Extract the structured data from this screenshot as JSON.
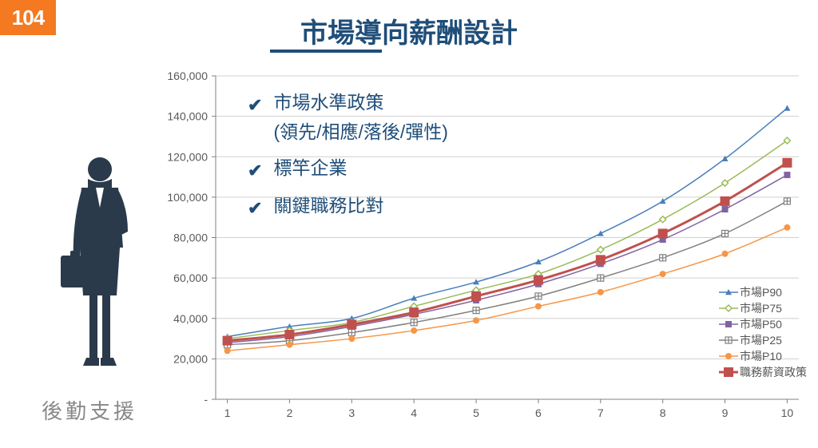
{
  "logo": {
    "text": "104",
    "bg": "#f47920",
    "fg": "#ffffff"
  },
  "title": "市場導向薪酬設計",
  "title_color": "#1f4e79",
  "bullets": [
    {
      "text": "市場水準政策",
      "sub": "(領先/相應/落後/彈性)"
    },
    {
      "text": "標竿企業"
    },
    {
      "text": "關鍵職務比對"
    }
  ],
  "person_label": "後勤支援",
  "person_color": "#2b3a4a",
  "chart": {
    "type": "line",
    "x_categories": [
      1,
      2,
      3,
      4,
      5,
      6,
      7,
      8,
      9,
      10
    ],
    "ylim": [
      0,
      160000
    ],
    "ytick_step": 20000,
    "y_labels": [
      "-",
      "20,000",
      "40,000",
      "60,000",
      "80,000",
      "100,000",
      "120,000",
      "140,000",
      "160,000"
    ],
    "grid_color": "#d0d0d0",
    "axis_color": "#808080",
    "label_color": "#595959",
    "label_fontsize": 14,
    "background": "#ffffff",
    "series": [
      {
        "name": "市場P90",
        "color": "#4a7ebb",
        "marker": "triangle",
        "line_width": 1.5,
        "values": [
          31000,
          36000,
          40000,
          50000,
          58000,
          68000,
          82000,
          98000,
          119000,
          144000
        ]
      },
      {
        "name": "市場P75",
        "color": "#9bbb59",
        "marker": "diamond-open",
        "line_width": 1.5,
        "values": [
          30000,
          34000,
          38000,
          46000,
          54000,
          62000,
          74000,
          89000,
          107000,
          128000
        ]
      },
      {
        "name": "市場P50",
        "color": "#8064a2",
        "marker": "square",
        "line_width": 1.5,
        "values": [
          28000,
          31000,
          36000,
          42000,
          49000,
          57000,
          67000,
          79000,
          94000,
          111000
        ]
      },
      {
        "name": "市場P25",
        "color": "#808080",
        "marker": "plus-box",
        "line_width": 1.5,
        "values": [
          27000,
          29000,
          33000,
          38000,
          44000,
          51000,
          60000,
          70000,
          82000,
          98000
        ]
      },
      {
        "name": "市場P10",
        "color": "#f79646",
        "marker": "circle",
        "line_width": 1.5,
        "values": [
          24000,
          27000,
          30000,
          34000,
          39000,
          46000,
          53000,
          62000,
          72000,
          85000
        ]
      },
      {
        "name": "職務薪資政策",
        "color": "#c0504d",
        "marker": "big-square",
        "line_width": 3,
        "values": [
          29000,
          32000,
          37000,
          43000,
          51000,
          59000,
          69000,
          82000,
          98000,
          117000
        ]
      }
    ]
  }
}
